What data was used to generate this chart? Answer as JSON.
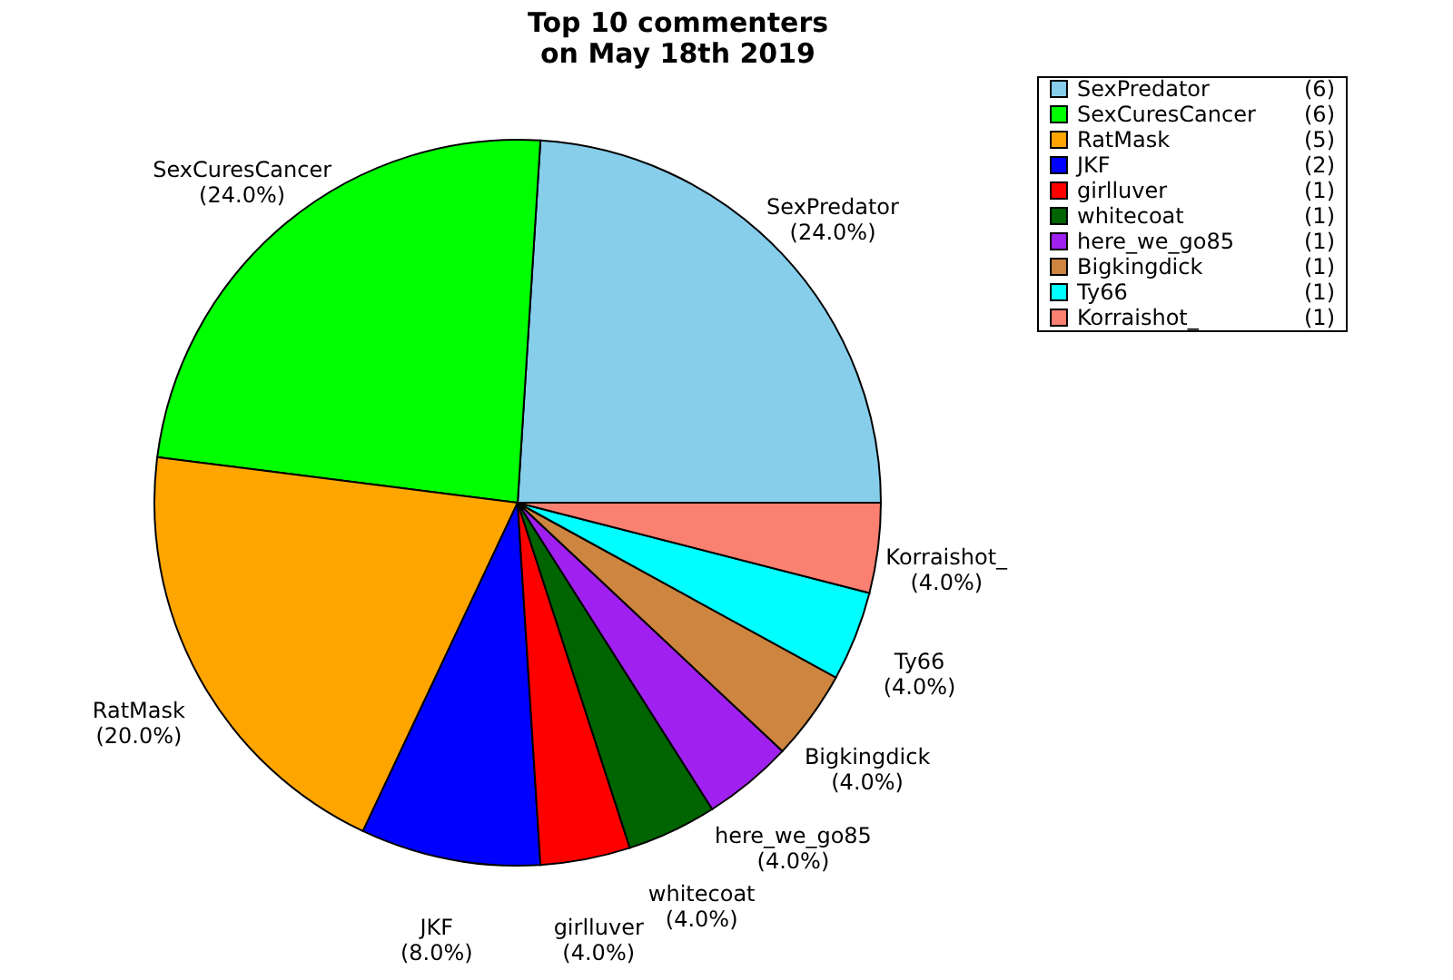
{
  "chart_data": {
    "type": "pie",
    "title": "Top 10 commenters\non May 18th 2019",
    "categories": [
      "SexPredator",
      "SexCuresCancer",
      "RatMask",
      "JKF",
      "girlluver",
      "whitecoat",
      "here_we_go85",
      "Bigkingdick",
      "Ty66",
      "Korraishot_"
    ],
    "values": [
      24,
      24,
      20,
      8,
      4,
      4,
      4,
      4,
      4,
      4
    ],
    "annotations": [
      "(6)",
      "(6)",
      "(5)",
      "(2)",
      "(1)",
      "(1)",
      "(1)",
      "(1)",
      "(1)",
      "(1)"
    ],
    "value_labels": [
      "(24.0%)",
      "(24.0%)",
      "(20.0%)",
      "(8.0%)",
      "(4.0%)",
      "(4.0%)",
      "(4.0%)",
      "(4.0%)",
      "(4.0%)",
      "(4.0%)"
    ],
    "colors": [
      "#87ceeb",
      "#00ff00",
      "#ffa500",
      "#0000ff",
      "#ff0000",
      "#006400",
      "#a020f0",
      "#cd853f",
      "#00ffff",
      "#fa8072"
    ],
    "legend": "top right"
  }
}
